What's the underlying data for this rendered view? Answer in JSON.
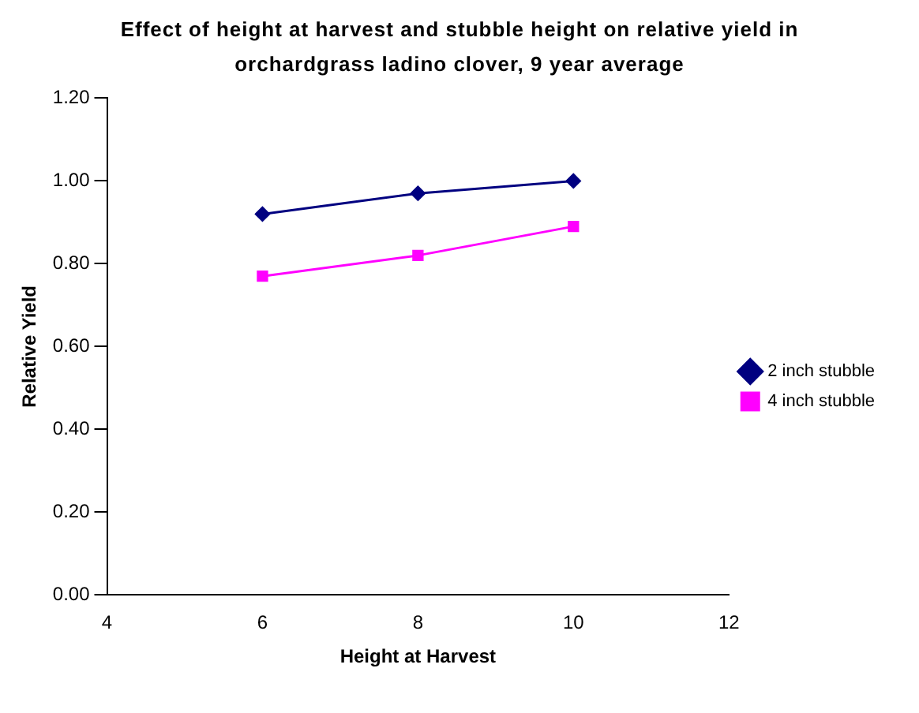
{
  "chart_data": {
    "type": "line",
    "title": "Effect of height at harvest and stubble height on relative yield in orchardgrass ladino clover, 9 year average",
    "xlabel": "Height at Harvest",
    "ylabel": "Relative Yield",
    "x": [
      6,
      8,
      10
    ],
    "series": [
      {
        "name": "2 inch stubble",
        "color": "#000080",
        "marker": "diamond",
        "values": [
          0.92,
          0.97,
          1.0
        ]
      },
      {
        "name": "4 inch stubble",
        "color": "#ff00ff",
        "marker": "square",
        "values": [
          0.77,
          0.82,
          0.89
        ]
      }
    ],
    "xlim": [
      4,
      12
    ],
    "xticks": [
      4,
      6,
      8,
      10,
      12
    ],
    "ylim": [
      0,
      1.2
    ],
    "yticks": [
      {
        "value": 0,
        "label": "0.00"
      },
      {
        "value": 0.2,
        "label": "0.20"
      },
      {
        "value": 0.4,
        "label": "0.40"
      },
      {
        "value": 0.6,
        "label": "0.60"
      },
      {
        "value": 0.8,
        "label": "0.80"
      },
      {
        "value": 1,
        "label": "1.00"
      },
      {
        "value": 1.2,
        "label": "1.20"
      }
    ],
    "grid": false,
    "legend": "right",
    "line_style": "solid"
  }
}
